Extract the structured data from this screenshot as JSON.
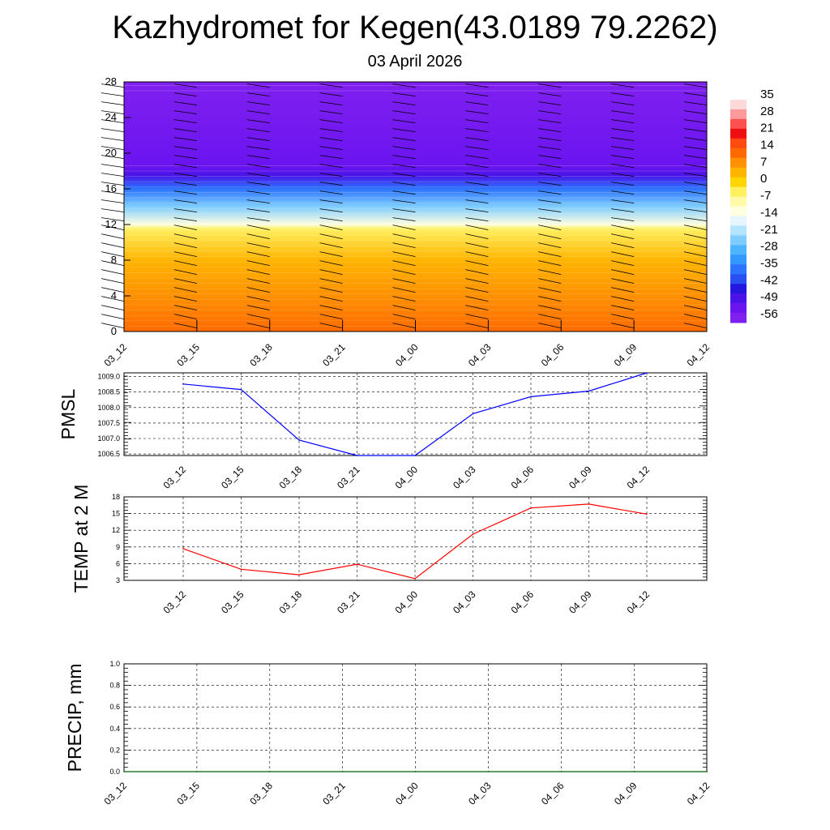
{
  "title": "Kazhydromet for Kegen(43.0189 79.2262)",
  "subtitle": "03 April 2026",
  "chart_data": [
    {
      "type": "heatmap",
      "name": "temperature-wind-cross-section",
      "x_categories": [
        "03_12",
        "03_15",
        "03_18",
        "03_21",
        "04_00",
        "04_03",
        "04_06",
        "04_09",
        "04_12"
      ],
      "ylim": [
        0,
        28
      ],
      "y_ticks": [
        "0",
        "4",
        "8",
        "12",
        "16",
        "20",
        "24",
        "28"
      ],
      "colorbar_labels": [
        "35",
        "28",
        "21",
        "14",
        "7",
        "0",
        "-7",
        "-14",
        "-21",
        "-28",
        "-35",
        "-42",
        "-49",
        "-56"
      ],
      "colorbar_colors": [
        "#ffffff",
        "#ffd8d8",
        "#ff9a9a",
        "#ff5050",
        "#ee1010",
        "#ff4a12",
        "#ff6a00",
        "#ff9000",
        "#ffb400",
        "#ffd400",
        "#fff060",
        "#fffaa8",
        "#fffee0",
        "#e6f5ff",
        "#b4e4ff",
        "#7fcdff",
        "#4fb4ff",
        "#3398ff",
        "#2c74ff",
        "#2850f0",
        "#2418e0",
        "#4a14e8",
        "#6a14f0",
        "#8020f0"
      ],
      "temperature_profile": [
        {
          "alt": 0,
          "temp": 14
        },
        {
          "alt": 4,
          "temp": 10
        },
        {
          "alt": 8,
          "temp": 4
        },
        {
          "alt": 11.5,
          "temp": -4
        },
        {
          "alt": 12,
          "temp": -14
        },
        {
          "alt": 14,
          "temp": -26
        },
        {
          "alt": 16,
          "temp": -40
        },
        {
          "alt": 17.5,
          "temp": -54
        },
        {
          "alt": 18.5,
          "temp": -58
        },
        {
          "alt": 28,
          "temp": -60
        }
      ]
    },
    {
      "type": "line",
      "name": "pmsl",
      "ylabel": "PMSL",
      "color": "#0000ff",
      "x": [
        "03_12",
        "03_15",
        "03_18",
        "03_21",
        "04_00",
        "04_03",
        "04_06",
        "04_09",
        "04_12"
      ],
      "values": [
        1008.76,
        1008.58,
        1006.95,
        1006.45,
        1006.45,
        1007.8,
        1008.35,
        1008.53,
        1009.12
      ],
      "ylim": [
        1006.45,
        1009.12
      ],
      "y_ticks": [
        "1006.5",
        "1007.0",
        "1007.5",
        "1008.0",
        "1008.5",
        "1009.0"
      ]
    },
    {
      "type": "line",
      "name": "temp-2m",
      "ylabel": "TEMP at 2 M",
      "color": "#ff0000",
      "x": [
        "03_12",
        "03_15",
        "03_18",
        "03_21",
        "04_00",
        "04_03",
        "04_06",
        "04_09",
        "04_12"
      ],
      "values": [
        8.7,
        5.0,
        4.0,
        5.9,
        3.3,
        11.3,
        16.0,
        16.7,
        14.9
      ],
      "ylim": [
        3,
        18
      ],
      "y_ticks": [
        "3",
        "6",
        "9",
        "12",
        "15",
        "18"
      ]
    },
    {
      "type": "line",
      "name": "precip",
      "ylabel": "PRECIP, mm",
      "color": "#006400",
      "x": [
        "03_12",
        "03_15",
        "03_18",
        "03_21",
        "04_00",
        "04_03",
        "04_06",
        "04_09",
        "04_12"
      ],
      "values": [
        0,
        0,
        0,
        0,
        0,
        0,
        0,
        0,
        0
      ],
      "ylim": [
        0,
        1
      ],
      "y_ticks": [
        "0.0",
        "0.2",
        "0.4",
        "0.6",
        "0.8",
        "1.0"
      ]
    }
  ]
}
